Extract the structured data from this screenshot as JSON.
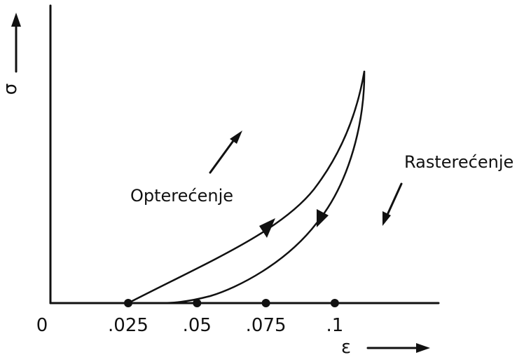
{
  "chart_data": {
    "type": "line",
    "title": "",
    "xlabel": "ε",
    "ylabel": "σ",
    "origin_label": "0",
    "x_ticks": [
      {
        "value": 0.025,
        "label": ".025"
      },
      {
        "value": 0.05,
        "label": ".05"
      },
      {
        "value": 0.075,
        "label": ".075"
      },
      {
        "value": 0.1,
        "label": ".1"
      }
    ],
    "annotations": {
      "loading": "Opterećenje",
      "unloading": "Rasterećenje"
    },
    "colors": {
      "ink": "#111111",
      "background": "#ffffff"
    }
  }
}
